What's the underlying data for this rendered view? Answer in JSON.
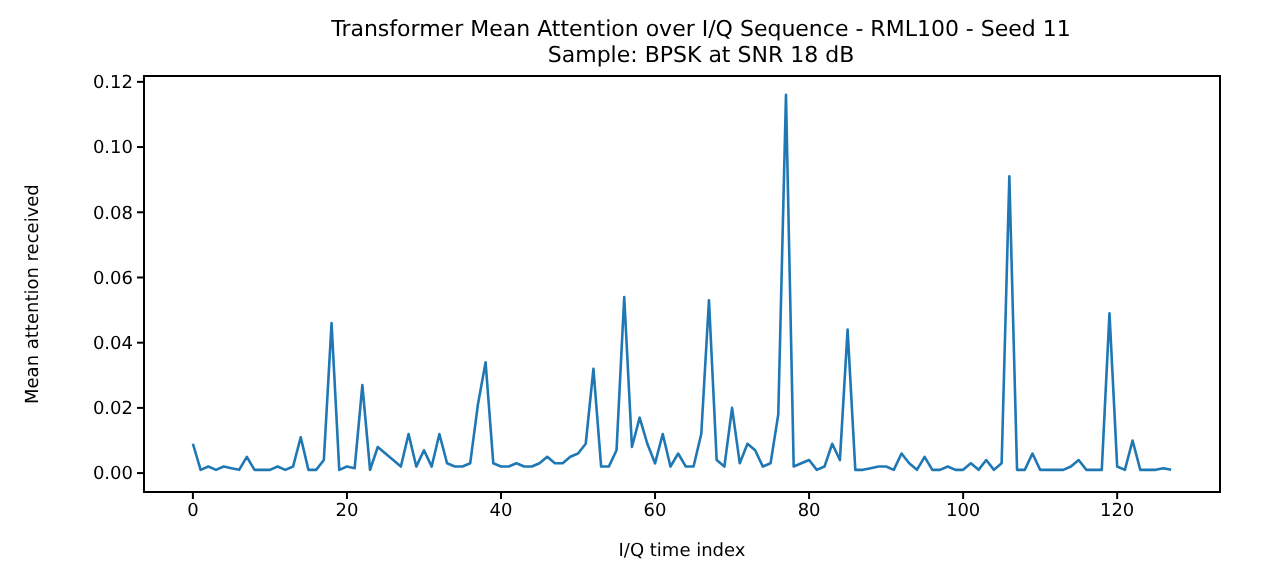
{
  "chart_data": {
    "type": "line",
    "title": "Transformer Mean Attention over I/Q Sequence - RML100 - Seed 11",
    "subtitle": "Sample: BPSK at SNR 18 dB",
    "xlabel": "I/Q time index",
    "ylabel": "Mean attention received",
    "x": [
      0,
      1,
      2,
      3,
      4,
      5,
      6,
      7,
      8,
      9,
      10,
      11,
      12,
      13,
      14,
      15,
      16,
      17,
      18,
      19,
      20,
      21,
      22,
      23,
      24,
      25,
      26,
      27,
      28,
      29,
      30,
      31,
      32,
      33,
      34,
      35,
      36,
      37,
      38,
      39,
      40,
      41,
      42,
      43,
      44,
      45,
      46,
      47,
      48,
      49,
      50,
      51,
      52,
      53,
      54,
      55,
      56,
      57,
      58,
      59,
      60,
      61,
      62,
      63,
      64,
      65,
      66,
      67,
      68,
      69,
      70,
      71,
      72,
      73,
      74,
      75,
      76,
      77,
      78,
      79,
      80,
      81,
      82,
      83,
      84,
      85,
      86,
      87,
      88,
      89,
      90,
      91,
      92,
      93,
      94,
      95,
      96,
      97,
      98,
      99,
      100,
      101,
      102,
      103,
      104,
      105,
      106,
      107,
      108,
      109,
      110,
      111,
      112,
      113,
      114,
      115,
      116,
      117,
      118,
      119,
      120,
      121,
      122,
      123,
      124,
      125,
      126,
      127
    ],
    "series": [
      {
        "color": "#1f77b4",
        "values": [
          0.009,
          0.001,
          0.002,
          0.001,
          0.002,
          0.0015,
          0.001,
          0.005,
          0.001,
          0.001,
          0.001,
          0.002,
          0.001,
          0.002,
          0.011,
          0.001,
          0.001,
          0.004,
          0.046,
          0.001,
          0.002,
          0.0015,
          0.027,
          0.001,
          0.008,
          0.006,
          0.004,
          0.002,
          0.012,
          0.002,
          0.007,
          0.002,
          0.012,
          0.003,
          0.002,
          0.002,
          0.003,
          0.021,
          0.034,
          0.003,
          0.002,
          0.002,
          0.003,
          0.002,
          0.002,
          0.003,
          0.005,
          0.003,
          0.003,
          0.005,
          0.006,
          0.009,
          0.032,
          0.002,
          0.002,
          0.007,
          0.054,
          0.008,
          0.017,
          0.009,
          0.003,
          0.012,
          0.002,
          0.006,
          0.002,
          0.002,
          0.012,
          0.053,
          0.004,
          0.002,
          0.02,
          0.003,
          0.009,
          0.007,
          0.002,
          0.003,
          0.018,
          0.116,
          0.002,
          0.003,
          0.004,
          0.001,
          0.002,
          0.009,
          0.004,
          0.044,
          0.001,
          0.001,
          0.0015,
          0.002,
          0.002,
          0.001,
          0.006,
          0.003,
          0.001,
          0.005,
          0.001,
          0.001,
          0.002,
          0.001,
          0.001,
          0.003,
          0.001,
          0.004,
          0.001,
          0.003,
          0.091,
          0.001,
          0.001,
          0.006,
          0.001,
          0.001,
          0.001,
          0.001,
          0.002,
          0.004,
          0.001,
          0.001,
          0.001,
          0.049,
          0.002,
          0.001,
          0.01,
          0.001,
          0.001,
          0.001,
          0.0015,
          0.001
        ]
      }
    ],
    "xlim": [
      -6.35,
      133.35
    ],
    "xticks": [
      0,
      20,
      40,
      60,
      80,
      100,
      120
    ],
    "ylim": [
      -0.0058,
      0.1218
    ],
    "yticks": [
      {
        "value": 0,
        "label": "0.00"
      },
      {
        "value": 0.02,
        "label": "0.02"
      },
      {
        "value": 0.04,
        "label": "0.04"
      },
      {
        "value": 0.06,
        "label": "0.06"
      },
      {
        "value": 0.08,
        "label": "0.08"
      },
      {
        "value": 0.1,
        "label": "0.10"
      },
      {
        "value": 0.12,
        "label": "0.12"
      }
    ],
    "grid": false,
    "legend": false,
    "marker": "none",
    "line_style": "solid"
  }
}
